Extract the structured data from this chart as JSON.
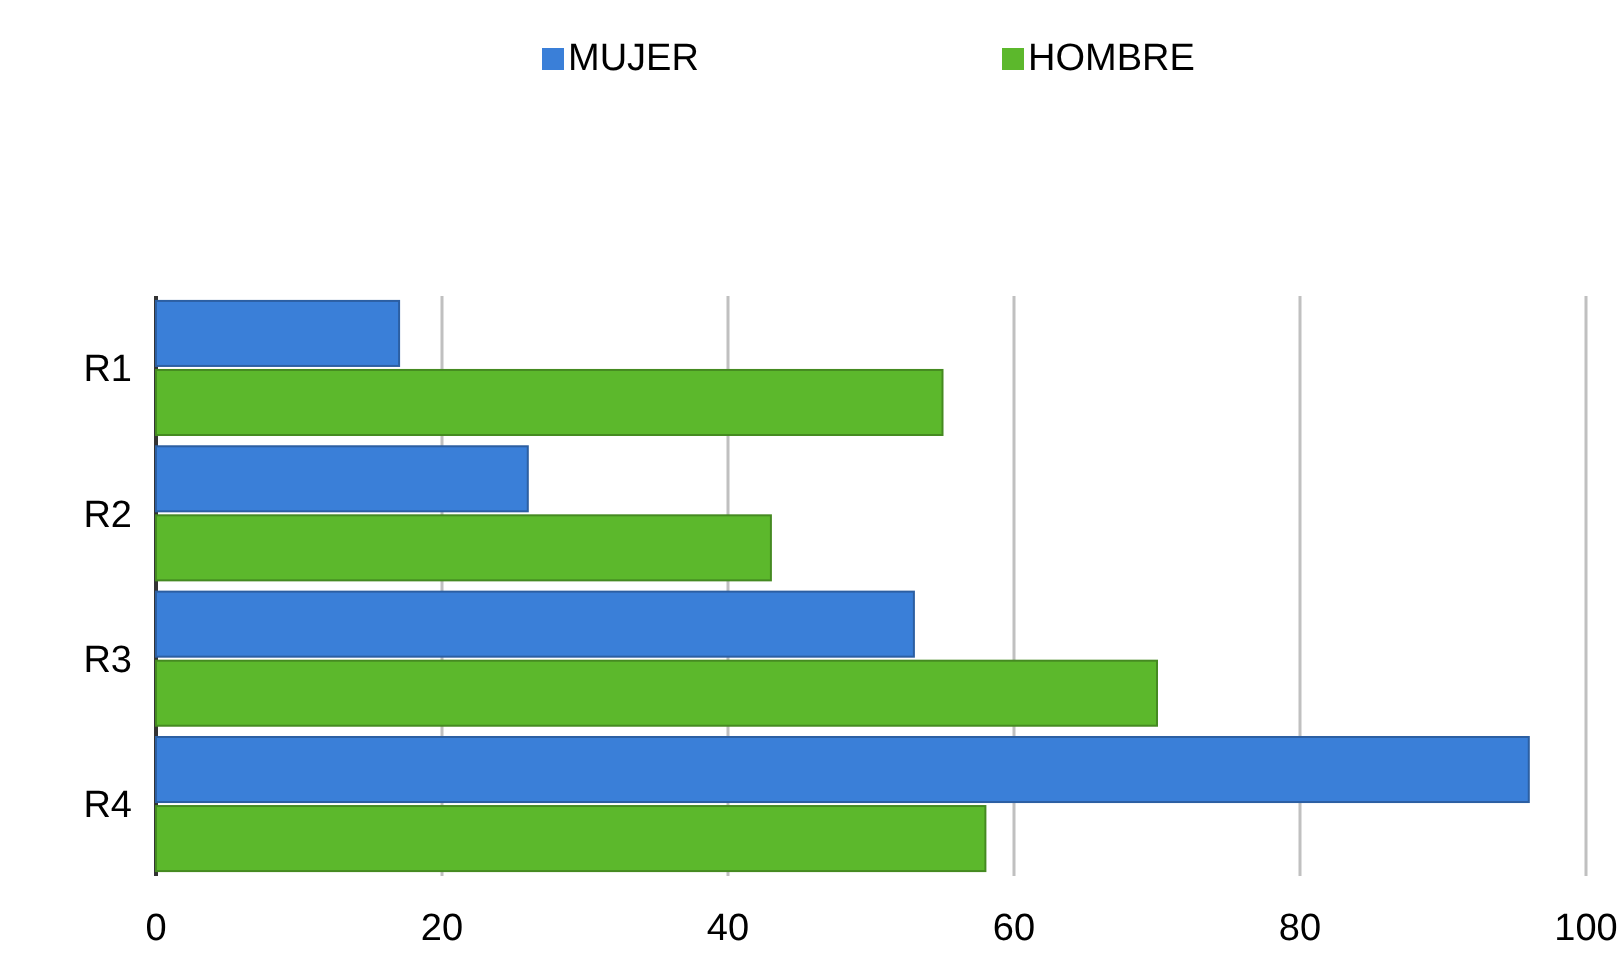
{
  "chart_data": {
    "type": "bar",
    "orientation": "horizontal",
    "categories": [
      "R1",
      "R2",
      "R3",
      "R4"
    ],
    "series": [
      {
        "name": "MUJER",
        "color": "#3a7fd8",
        "values": [
          17,
          26,
          53,
          96
        ]
      },
      {
        "name": "HOMBRE",
        "color": "#5cb82c",
        "values": [
          55,
          43,
          70,
          58
        ]
      }
    ],
    "xlim": [
      0,
      100
    ],
    "xticks": [
      0,
      20,
      40,
      60,
      80,
      100
    ],
    "grid": "x",
    "legend": "top"
  }
}
